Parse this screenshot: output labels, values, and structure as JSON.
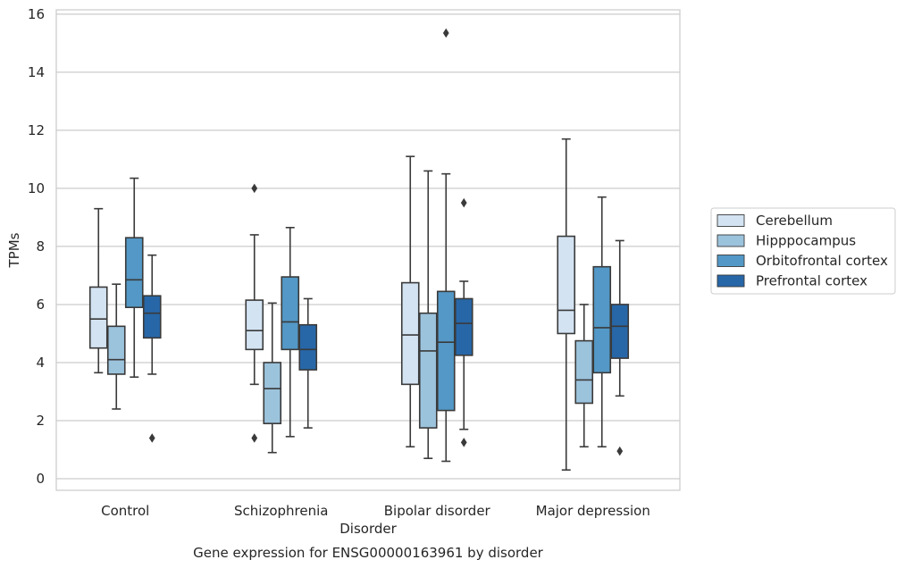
{
  "chart_data": {
    "type": "box",
    "xlabel": "Disorder",
    "ylabel": "TPMs",
    "caption": "Gene expression for ENSG00000163961 by disorder",
    "ylim": [
      -0.4,
      16.15
    ],
    "yticks": [
      0,
      2,
      4,
      6,
      8,
      10,
      12,
      14,
      16
    ],
    "grid": "horizontal",
    "legend_placement": "right",
    "categories": [
      "Control",
      "Schizophrenia",
      "Bipolar disorder",
      "Major depression"
    ],
    "series": [
      {
        "name": "Cerebellum",
        "color": "#d3e3f2",
        "boxes": [
          {
            "min": 3.65,
            "q1": 4.5,
            "median": 5.5,
            "q3": 6.6,
            "max": 9.3,
            "outliers": []
          },
          {
            "min": 3.25,
            "q1": 4.45,
            "median": 5.1,
            "q3": 6.15,
            "max": 8.4,
            "outliers": [
              10.0,
              1.4
            ]
          },
          {
            "min": 1.1,
            "q1": 3.25,
            "median": 4.95,
            "q3": 6.75,
            "max": 11.1,
            "outliers": []
          },
          {
            "min": 0.3,
            "q1": 5.0,
            "median": 5.8,
            "q3": 8.35,
            "max": 11.7,
            "outliers": []
          }
        ]
      },
      {
        "name": "Hipppocampus",
        "color": "#9cc3dc",
        "boxes": [
          {
            "min": 2.4,
            "q1": 3.6,
            "median": 4.1,
            "q3": 5.25,
            "max": 6.7,
            "outliers": []
          },
          {
            "min": 0.9,
            "q1": 1.9,
            "median": 3.1,
            "q3": 4.0,
            "max": 6.05,
            "outliers": []
          },
          {
            "min": 0.7,
            "q1": 1.75,
            "median": 4.4,
            "q3": 5.7,
            "max": 10.6,
            "outliers": []
          },
          {
            "min": 1.1,
            "q1": 2.6,
            "median": 3.4,
            "q3": 4.75,
            "max": 6.0,
            "outliers": []
          }
        ]
      },
      {
        "name": "Orbitofrontal cortex",
        "color": "#5398c6",
        "boxes": [
          {
            "min": 3.5,
            "q1": 5.9,
            "median": 6.85,
            "q3": 8.3,
            "max": 10.35,
            "outliers": []
          },
          {
            "min": 1.45,
            "q1": 4.45,
            "median": 5.4,
            "q3": 6.95,
            "max": 8.65,
            "outliers": []
          },
          {
            "min": 0.6,
            "q1": 2.35,
            "median": 4.7,
            "q3": 6.45,
            "max": 10.5,
            "outliers": [
              15.35
            ]
          },
          {
            "min": 1.1,
            "q1": 3.65,
            "median": 5.2,
            "q3": 7.3,
            "max": 9.7,
            "outliers": []
          }
        ]
      },
      {
        "name": "Prefrontal cortex",
        "color": "#2767a8",
        "boxes": [
          {
            "min": 3.6,
            "q1": 4.85,
            "median": 5.7,
            "q3": 6.3,
            "max": 7.7,
            "outliers": [
              1.4
            ]
          },
          {
            "min": 1.75,
            "q1": 3.75,
            "median": 4.45,
            "q3": 5.3,
            "max": 6.2,
            "outliers": []
          },
          {
            "min": 1.7,
            "q1": 4.25,
            "median": 5.35,
            "q3": 6.2,
            "max": 6.8,
            "outliers": [
              9.5,
              1.25
            ]
          },
          {
            "min": 2.85,
            "q1": 4.15,
            "median": 5.25,
            "q3": 6.0,
            "max": 8.2,
            "outliers": [
              0.95
            ]
          }
        ]
      }
    ]
  }
}
